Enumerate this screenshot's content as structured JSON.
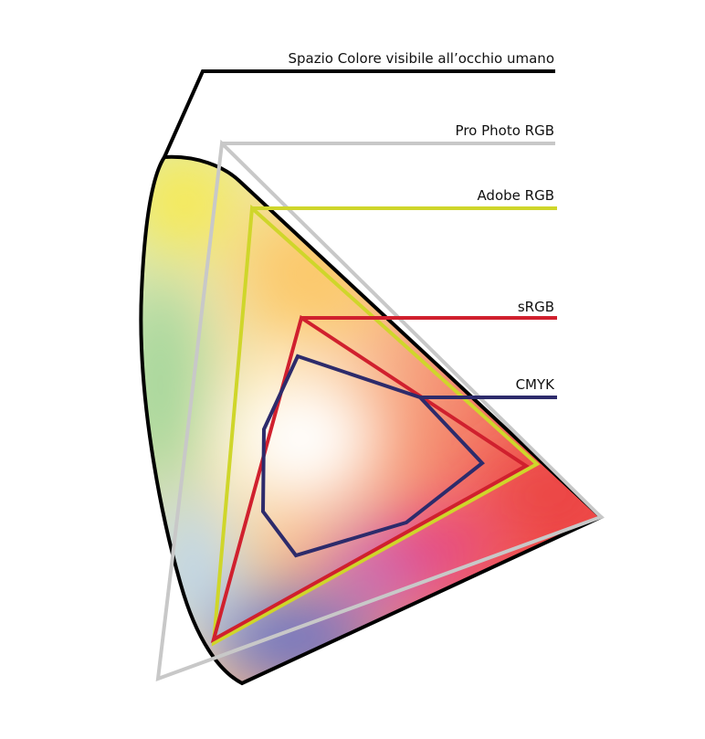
{
  "gamuts": [
    {
      "label": "Spazio Colore visibile all’occhio umano"
    },
    {
      "label": "Pro Photo RGB"
    },
    {
      "label": "Adobe RGB"
    },
    {
      "label": "sRGB"
    },
    {
      "label": "CMYK"
    }
  ]
}
